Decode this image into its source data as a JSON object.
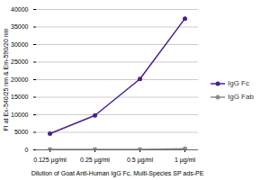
{
  "chart_data": {
    "type": "line",
    "x_label": "Dilution of Goat Anti-Human IgG Fc, Multi-Species SP ads-PE",
    "y_label": "FI at Ex-540/25 nm & Em-590/20 nm",
    "categories": [
      "0.125 µg/ml",
      "0.25 µg/ml",
      "0.5 µg/ml",
      "1 µg/ml"
    ],
    "series": [
      {
        "name": "IgG Fc",
        "color": "#4b1f8f",
        "values": [
          4600,
          9800,
          20200,
          37400
        ]
      },
      {
        "name": "IgG Fab",
        "color": "#8c8c8c",
        "values": [
          100,
          100,
          100,
          300
        ]
      }
    ],
    "ylim": [
      0,
      40000
    ],
    "yticks": [
      0,
      5000,
      10000,
      15000,
      20000,
      25000,
      30000,
      35000,
      40000
    ],
    "grid": true,
    "legend": "right",
    "marker": "circle"
  }
}
